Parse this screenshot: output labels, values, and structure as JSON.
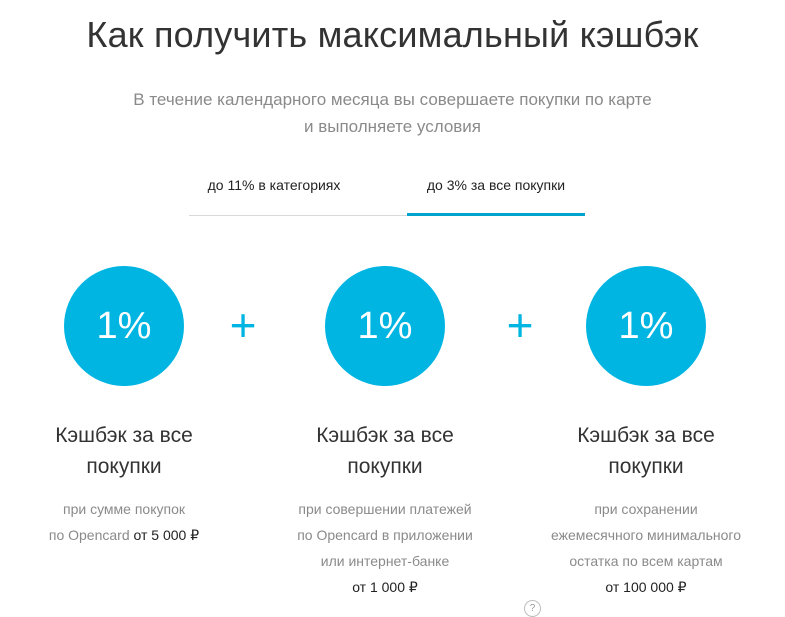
{
  "header": {
    "title": "Как получить максимальный кэшбэк",
    "subtitle_line1": "В течение календарного месяца вы совершаете покупки по карте",
    "subtitle_line2": "и выполняете условия"
  },
  "tabs": [
    {
      "label": "до 11% в категориях",
      "active": false
    },
    {
      "label": "до 3% за все покупки",
      "active": true
    }
  ],
  "accent_color": "#00b5e2",
  "plus_sign": "+",
  "columns": [
    {
      "percent": "1%",
      "title_line1": "Кэшбэк за все",
      "title_line2": "покупки",
      "desc_lines": [
        "при сумме покупок"
      ],
      "desc_prefix": "по Opencard",
      "desc_amount": "от 5 000 ₽"
    },
    {
      "percent": "1%",
      "title_line1": "Кэшбэк за все",
      "title_line2": "покупки",
      "desc_lines": [
        "при совершении платежей",
        "по Opencard в приложении",
        "или интернет-банке"
      ],
      "desc_amount": "от 1 000 ₽"
    },
    {
      "percent": "1%",
      "title_line1": "Кэшбэк за все",
      "title_line2": "покупки",
      "desc_lines": [
        "при сохранении",
        "ежемесячного минимального",
        "остатка по всем картам"
      ],
      "desc_amount": "от 100 000 ₽",
      "help_icon": "?"
    }
  ]
}
